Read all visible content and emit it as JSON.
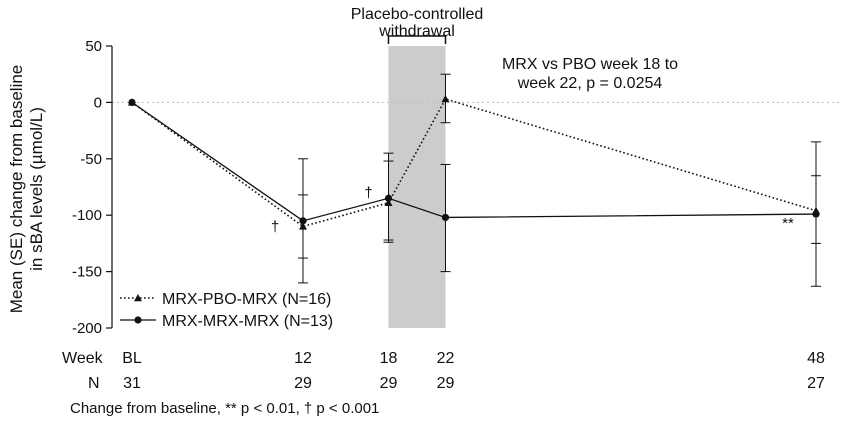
{
  "chart_data": {
    "type": "line",
    "ylabel_line1": "Mean (SE) change from baseline",
    "ylabel_line2": "in sBA levels (µmol/L)",
    "xlabel": "",
    "ylim": [
      -200,
      50
    ],
    "yticks": [
      50,
      0,
      -50,
      -100,
      -150,
      -200
    ],
    "x_positions": [
      0,
      12,
      18,
      22,
      48
    ],
    "x_tick_labels": [
      "BL",
      "12",
      "18",
      "22",
      "48"
    ],
    "week_row_label": "Week",
    "n_row_label": "N",
    "n_values": [
      "31",
      "29",
      "29",
      "29",
      "27"
    ],
    "shaded_region": {
      "from": 18,
      "to": 22,
      "label_line1": "Placebo-controlled",
      "label_line2": "withdrawal"
    },
    "annotation_line1": "MRX vs PBO week 18 to",
    "annotation_line2": "week 22, p = 0.0254",
    "series": [
      {
        "name": "MRX-PBO-MRX (N=16)",
        "style": "dotted",
        "marker": "triangle",
        "values": [
          0,
          -110,
          -89,
          3,
          -96
        ],
        "se_upper": [
          null,
          -82,
          -52,
          25,
          -65
        ],
        "se_lower": [
          null,
          -138,
          -124,
          -18,
          -125
        ]
      },
      {
        "name": "MRX-MRX-MRX (N=13)",
        "style": "solid",
        "marker": "circle",
        "values": [
          0,
          -105,
          -85,
          -102,
          -99
        ],
        "se_upper": [
          null,
          -50,
          -45,
          -55,
          -35
        ],
        "se_lower": [
          null,
          -160,
          -122,
          -150,
          -163
        ]
      }
    ],
    "significance_marks": [
      {
        "x": 12,
        "y": -110,
        "label": "†"
      },
      {
        "x": 18,
        "y": -80,
        "label": "†"
      },
      {
        "x": 48,
        "y": -107,
        "label": "**"
      }
    ],
    "grid": false,
    "zero_reference_line": true,
    "legend_position": "bottom-left",
    "footnote": "Change from baseline, ** p < 0.01, † p < 0.001",
    "colors": {
      "line": "#111111",
      "shade": "#cccccc",
      "zero_line": "#bbbbbb"
    }
  }
}
